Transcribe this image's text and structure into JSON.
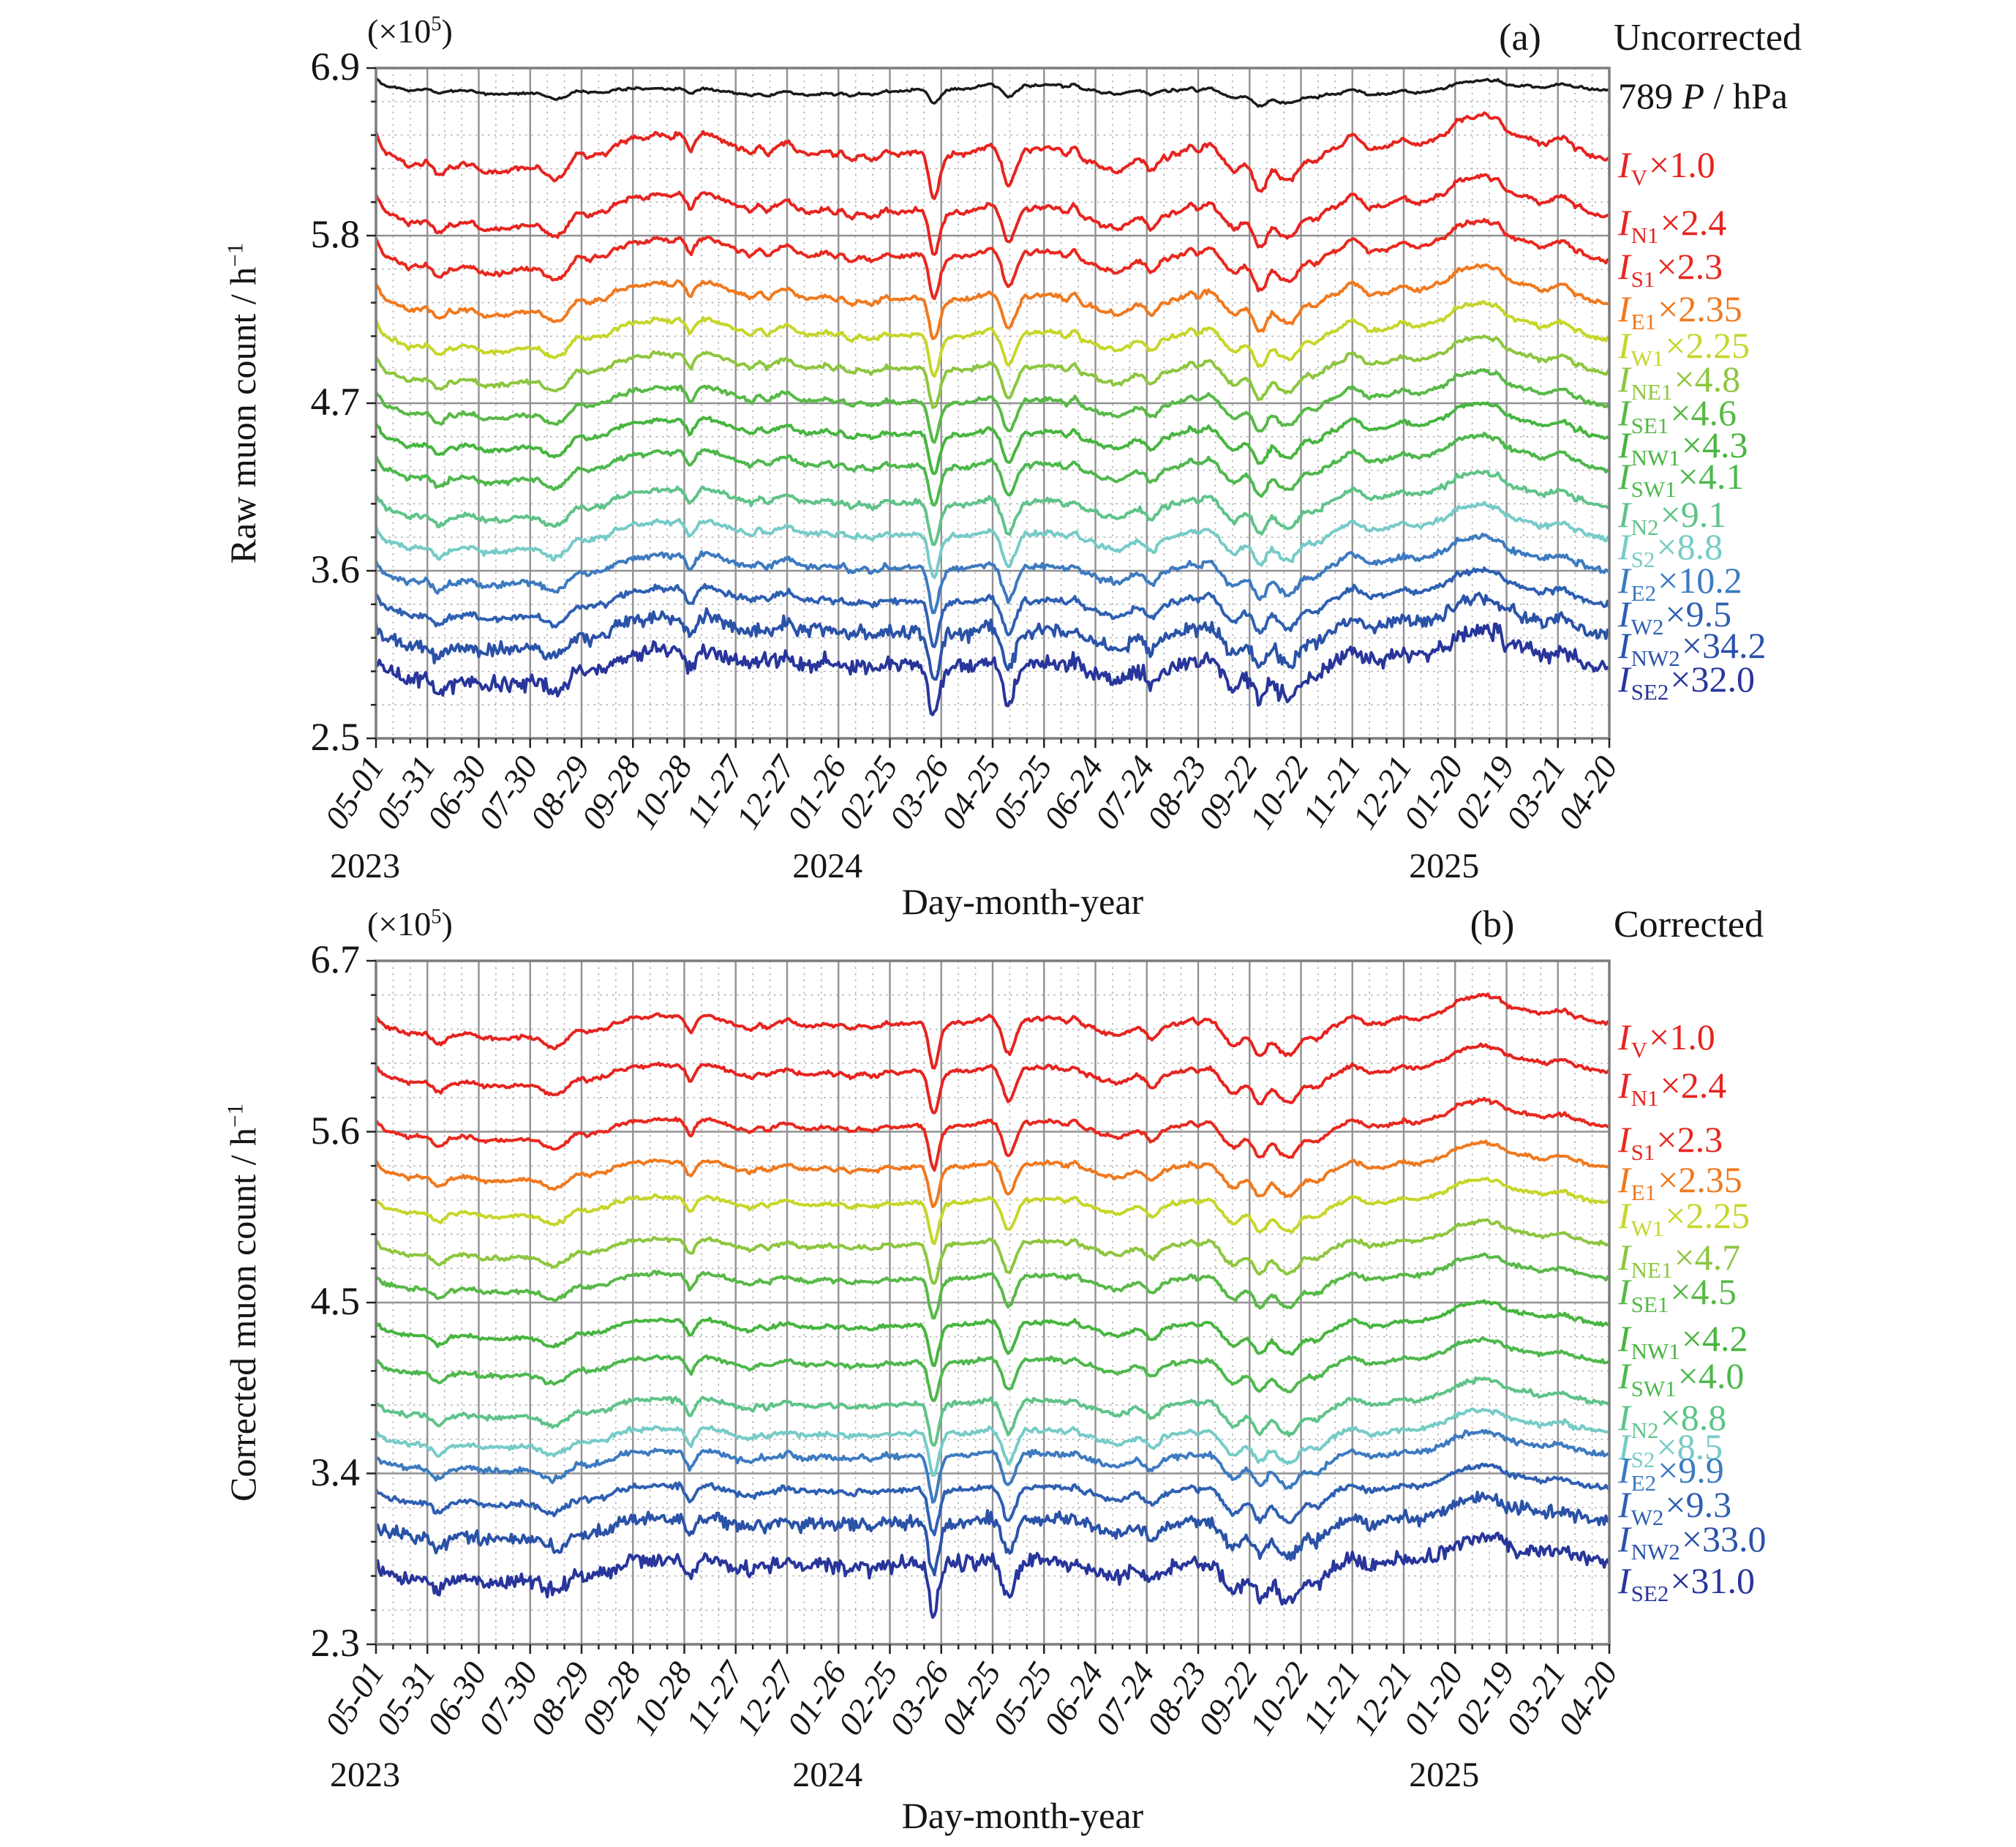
{
  "chart_data": [
    {
      "type": "line",
      "panel": "a",
      "tag": "(a)",
      "title": "Uncorrected",
      "scale_note": {
        "prefix": "(×10",
        "sup": "5",
        "suffix": ")"
      },
      "pressure_legend": {
        "prefix": "789 ",
        "symbol": "P",
        "suffix": " / hPa"
      },
      "xlabel": "Day-month-year",
      "ylabel": {
        "main": "Raw muon count / h",
        "sup": "−1"
      },
      "ylim": [
        2.5,
        6.9
      ],
      "ytick_values": [
        6.9,
        5.8,
        4.7,
        3.6,
        2.5
      ],
      "ytick_labels": [
        "6.9",
        "5.8",
        "4.7",
        "3.6",
        "2.5"
      ],
      "minor_y_step": 0.22,
      "x_days": 720,
      "xtick_every_days": 30,
      "minor_x_days": 10,
      "xtick_labels": [
        "05-01",
        "05-31",
        "06-30",
        "07-30",
        "08-29",
        "09-28",
        "10-28",
        "11-27",
        "12-27",
        "01-26",
        "02-25",
        "03-26",
        "04-25",
        "05-25",
        "06-24",
        "07-24",
        "08-23",
        "09-22",
        "10-22",
        "11-21",
        "12-21",
        "01-20",
        "02-19",
        "03-21",
        "04-20"
      ],
      "years": [
        {
          "label": "2023",
          "tick": 0
        },
        {
          "label": "2024",
          "tick": 9
        },
        {
          "label": "2025",
          "tick": 21
        }
      ],
      "grid": {
        "major": true,
        "minor": true
      },
      "season_amp": 0.032,
      "events": [
        {
          "t": 0.05,
          "w": 0.006,
          "a": -0.07
        },
        {
          "t": 0.14,
          "w": 0.008,
          "a": -0.05
        },
        {
          "t": 0.19,
          "w": 0.008,
          "a": 0.09,
          "type": "step"
        },
        {
          "t": 0.255,
          "w": 0.004,
          "a": -0.11
        },
        {
          "t": 0.3,
          "w": 0.01,
          "a": -0.04
        },
        {
          "t": 0.452,
          "w": 0.0038,
          "a": -0.28
        },
        {
          "t": 0.513,
          "w": 0.005,
          "a": -0.2
        },
        {
          "t": 0.6,
          "w": 0.012,
          "a": -0.05
        },
        {
          "t": 0.63,
          "w": 0.006,
          "a": -0.09
        },
        {
          "t": 0.695,
          "w": 0.008,
          "a": -0.16
        },
        {
          "t": 0.716,
          "w": 0.005,
          "a": -0.13
        },
        {
          "t": 0.74,
          "w": 0.01,
          "a": -0.2
        },
        {
          "t": 0.765,
          "w": 0.007,
          "a": -0.11
        },
        {
          "t": 0.85,
          "w": 0.015,
          "a": 0.07,
          "type": "step"
        },
        {
          "t": 0.895,
          "w": 0.018,
          "a": 0.05
        },
        {
          "t": 0.962,
          "w": 0.012,
          "a": -0.04,
          "type": "step"
        }
      ],
      "series": [
        {
          "name": "P",
          "legend": null,
          "color": "#1a1a1a",
          "base": 6.73,
          "wiggle": 0.02,
          "noise": 0.008,
          "seas": -0.6,
          "sens": 0.3,
          "width": 3.5
        },
        {
          "name": "I_V",
          "sub": "V",
          "factor": "×1.0",
          "color": "#e62420",
          "base": 6.28,
          "wiggle": 0.055,
          "noise": 0.013,
          "seas": 1,
          "sens": 1.0,
          "width": 4
        },
        {
          "name": "I_N1",
          "sub": "N1",
          "factor": "×2.4",
          "color": "#e62420",
          "base": 5.9,
          "wiggle": 0.05,
          "noise": 0.013,
          "seas": 1,
          "sens": 0.95,
          "width": 4
        },
        {
          "name": "I_S1",
          "sub": "S1",
          "factor": "×2.3",
          "color": "#e8291f",
          "base": 5.61,
          "wiggle": 0.048,
          "noise": 0.013,
          "seas": 1,
          "sens": 0.95,
          "width": 4
        },
        {
          "name": "I_E1",
          "sub": "E1",
          "factor": "×2.35",
          "color": "#f0791e",
          "base": 5.33,
          "wiggle": 0.045,
          "noise": 0.013,
          "seas": 1,
          "sens": 0.9,
          "width": 4
        },
        {
          "name": "I_W1",
          "sub": "W1",
          "factor": "×2.25",
          "color": "#c6d629",
          "base": 5.09,
          "wiggle": 0.042,
          "noise": 0.013,
          "seas": 1,
          "sens": 0.9,
          "width": 4
        },
        {
          "name": "I_NE1",
          "sub": "NE1",
          "factor": "×4.8",
          "color": "#8dc63f",
          "base": 4.87,
          "wiggle": 0.04,
          "noise": 0.014,
          "seas": 1,
          "sens": 0.9,
          "width": 4
        },
        {
          "name": "I_SE1",
          "sub": "SE1",
          "factor": "×4.6",
          "color": "#58b947",
          "base": 4.65,
          "wiggle": 0.038,
          "noise": 0.014,
          "seas": 1,
          "sens": 0.9,
          "width": 4
        },
        {
          "name": "I_NW1",
          "sub": "NW1",
          "factor": "×4.3",
          "color": "#47b53f",
          "base": 4.44,
          "wiggle": 0.038,
          "noise": 0.014,
          "seas": 1,
          "sens": 0.9,
          "width": 4
        },
        {
          "name": "I_SW1",
          "sub": "SW1",
          "factor": "×4.1",
          "color": "#4eb84d",
          "base": 4.23,
          "wiggle": 0.038,
          "noise": 0.015,
          "seas": 1,
          "sens": 0.9,
          "width": 4
        },
        {
          "name": "I_N2",
          "sub": "N2",
          "factor": "×9.1",
          "color": "#5fc389",
          "base": 3.98,
          "wiggle": 0.036,
          "noise": 0.018,
          "seas": 1,
          "sens": 0.95,
          "width": 4
        },
        {
          "name": "I_S2",
          "sub": "S2",
          "factor": "×8.8",
          "color": "#76cbc7",
          "base": 3.77,
          "wiggle": 0.034,
          "noise": 0.018,
          "seas": 1,
          "sens": 0.95,
          "width": 4
        },
        {
          "name": "I_E2",
          "sub": "E2",
          "factor": "×10.2",
          "color": "#3d7ac0",
          "base": 3.55,
          "wiggle": 0.034,
          "noise": 0.022,
          "seas": 1,
          "sens": 1.0,
          "width": 4
        },
        {
          "name": "I_W2",
          "sub": "W2",
          "factor": "×9.5",
          "color": "#2e5fb2",
          "base": 3.33,
          "wiggle": 0.034,
          "noise": 0.022,
          "seas": 1,
          "sens": 1.0,
          "width": 4
        },
        {
          "name": "I_NW2",
          "sub": "NW2",
          "factor": "×34.2",
          "color": "#2a52a8",
          "base": 3.12,
          "wiggle": 0.036,
          "noise": 0.055,
          "seas": 1,
          "sens": 1.1,
          "width": 4
        },
        {
          "name": "I_SE2",
          "sub": "SE2",
          "factor": "×32.0",
          "color": "#28359b",
          "base": 2.9,
          "wiggle": 0.036,
          "noise": 0.065,
          "seas": 1,
          "sens": 1.15,
          "width": 4
        }
      ]
    },
    {
      "type": "line",
      "panel": "b",
      "tag": "(b)",
      "title": "Corrected",
      "scale_note": {
        "prefix": "(×10",
        "sup": "5",
        "suffix": ")"
      },
      "xlabel": "Day-month-year",
      "ylabel": {
        "main": "Corrected muon count / h",
        "sup": "−1"
      },
      "ylim": [
        2.3,
        6.7
      ],
      "ytick_values": [
        6.7,
        5.6,
        4.5,
        3.4,
        2.3
      ],
      "ytick_labels": [
        "6.7",
        "5.6",
        "4.5",
        "3.4",
        "2.3"
      ],
      "minor_y_step": 0.22,
      "x_days": 720,
      "xtick_every_days": 30,
      "minor_x_days": 10,
      "xtick_labels": [
        "05-01",
        "05-31",
        "06-30",
        "07-30",
        "08-29",
        "09-28",
        "10-28",
        "11-27",
        "12-27",
        "01-26",
        "02-25",
        "03-26",
        "04-25",
        "05-25",
        "06-24",
        "07-24",
        "08-23",
        "09-22",
        "10-22",
        "11-21",
        "12-21",
        "01-20",
        "02-19",
        "03-21",
        "04-20"
      ],
      "years": [
        {
          "label": "2023",
          "tick": 0
        },
        {
          "label": "2024",
          "tick": 9
        },
        {
          "label": "2025",
          "tick": 21
        }
      ],
      "grid": {
        "major": true,
        "minor": true
      },
      "season_amp": 0,
      "events": [
        {
          "t": 0.05,
          "w": 0.006,
          "a": -0.07
        },
        {
          "t": 0.14,
          "w": 0.008,
          "a": -0.05
        },
        {
          "t": 0.19,
          "w": 0.008,
          "a": 0.09,
          "type": "step"
        },
        {
          "t": 0.255,
          "w": 0.004,
          "a": -0.11
        },
        {
          "t": 0.3,
          "w": 0.01,
          "a": -0.04
        },
        {
          "t": 0.452,
          "w": 0.0038,
          "a": -0.28
        },
        {
          "t": 0.513,
          "w": 0.005,
          "a": -0.2
        },
        {
          "t": 0.6,
          "w": 0.012,
          "a": -0.05
        },
        {
          "t": 0.63,
          "w": 0.006,
          "a": -0.09
        },
        {
          "t": 0.695,
          "w": 0.008,
          "a": -0.16
        },
        {
          "t": 0.716,
          "w": 0.005,
          "a": -0.13
        },
        {
          "t": 0.74,
          "w": 0.01,
          "a": -0.2
        },
        {
          "t": 0.765,
          "w": 0.007,
          "a": -0.11
        },
        {
          "t": 0.85,
          "w": 0.015,
          "a": 0.07,
          "type": "step"
        },
        {
          "t": 0.895,
          "w": 0.018,
          "a": 0.05
        },
        {
          "t": 0.962,
          "w": 0.012,
          "a": -0.04,
          "type": "step"
        }
      ],
      "series": [
        {
          "name": "I_V",
          "sub": "V",
          "factor": "×1.0",
          "color": "#e62420",
          "base": 6.22,
          "wiggle": 0.03,
          "noise": 0.013,
          "seas": 1,
          "sens": 1.0,
          "width": 4
        },
        {
          "name": "I_N1",
          "sub": "N1",
          "factor": "×2.4",
          "color": "#e62420",
          "base": 5.91,
          "wiggle": 0.028,
          "noise": 0.013,
          "seas": 1,
          "sens": 0.95,
          "width": 4
        },
        {
          "name": "I_S1",
          "sub": "S1",
          "factor": "×2.3",
          "color": "#e8291f",
          "base": 5.56,
          "wiggle": 0.027,
          "noise": 0.013,
          "seas": 1,
          "sens": 0.95,
          "width": 4
        },
        {
          "name": "I_E1",
          "sub": "E1",
          "factor": "×2.35",
          "color": "#f0791e",
          "base": 5.3,
          "wiggle": 0.025,
          "noise": 0.013,
          "seas": 1,
          "sens": 0.9,
          "width": 4
        },
        {
          "name": "I_W1",
          "sub": "W1",
          "factor": "×2.25",
          "color": "#c6d629",
          "base": 5.07,
          "wiggle": 0.024,
          "noise": 0.013,
          "seas": 1,
          "sens": 0.9,
          "width": 4
        },
        {
          "name": "I_NE1",
          "sub": "NE1",
          "factor": "×4.7",
          "color": "#8dc63f",
          "base": 4.8,
          "wiggle": 0.023,
          "noise": 0.014,
          "seas": 1,
          "sens": 0.9,
          "width": 4
        },
        {
          "name": "I_SE1",
          "sub": "SE1",
          "factor": "×4.5",
          "color": "#58b947",
          "base": 4.58,
          "wiggle": 0.022,
          "noise": 0.014,
          "seas": 1,
          "sens": 0.9,
          "width": 4
        },
        {
          "name": "I_NW1",
          "sub": "NW1",
          "factor": "×4.2",
          "color": "#47b53f",
          "base": 4.28,
          "wiggle": 0.022,
          "noise": 0.014,
          "seas": 1,
          "sens": 0.9,
          "width": 4
        },
        {
          "name": "I_SW1",
          "sub": "SW1",
          "factor": "×4.0",
          "color": "#4eb84d",
          "base": 4.04,
          "wiggle": 0.022,
          "noise": 0.015,
          "seas": 1,
          "sens": 0.9,
          "width": 4
        },
        {
          "name": "I_N2",
          "sub": "N2",
          "factor": "×8.8",
          "color": "#5fc389",
          "base": 3.77,
          "wiggle": 0.021,
          "noise": 0.018,
          "seas": 1,
          "sens": 0.95,
          "width": 4
        },
        {
          "name": "I_S2",
          "sub": "S2",
          "factor": "×8.5",
          "color": "#76cbc7",
          "base": 3.58,
          "wiggle": 0.02,
          "noise": 0.018,
          "seas": 1,
          "sens": 0.95,
          "width": 4
        },
        {
          "name": "I_E2",
          "sub": "E2",
          "factor": "×9.9",
          "color": "#3d7ac0",
          "base": 3.43,
          "wiggle": 0.02,
          "noise": 0.022,
          "seas": 1,
          "sens": 1.0,
          "width": 4
        },
        {
          "name": "I_W2",
          "sub": "W2",
          "factor": "×9.3",
          "color": "#2e5fb2",
          "base": 3.21,
          "wiggle": 0.02,
          "noise": 0.022,
          "seas": 1,
          "sens": 1.0,
          "width": 4
        },
        {
          "name": "I_NW2",
          "sub": "NW2",
          "factor": "×33.0",
          "color": "#2a52a8",
          "base": 2.99,
          "wiggle": 0.022,
          "noise": 0.05,
          "seas": 1,
          "sens": 1.1,
          "width": 4
        },
        {
          "name": "I_SE2",
          "sub": "SE2",
          "factor": "×31.0",
          "color": "#28359b",
          "base": 2.72,
          "wiggle": 0.022,
          "noise": 0.06,
          "seas": 1,
          "sens": 1.15,
          "width": 4
        }
      ]
    }
  ]
}
